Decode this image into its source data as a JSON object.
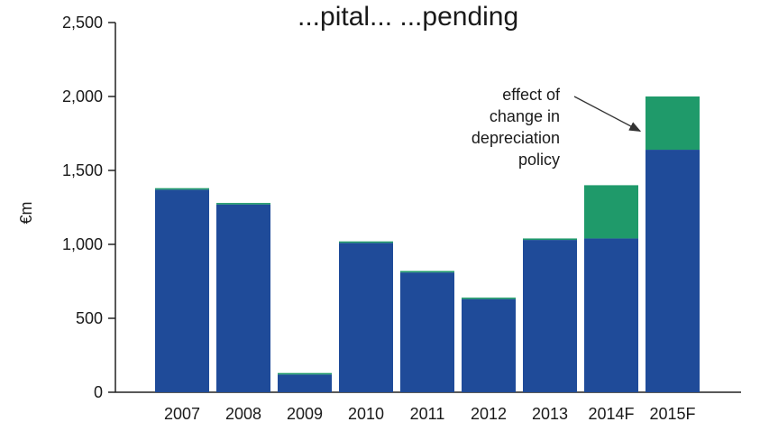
{
  "chart_data": {
    "type": "bar",
    "stacked": true,
    "title": "...pital... ...pending",
    "ylabel": "€m",
    "xlabel": "",
    "ylim": [
      0,
      2500
    ],
    "yticks": [
      0,
      500,
      1000,
      1500,
      2000,
      2500
    ],
    "ytick_labels": [
      "0",
      "500",
      "1,000",
      "1,500",
      "2,000",
      "2,500"
    ],
    "categories": [
      "2007",
      "2008",
      "2009",
      "2010",
      "2011",
      "2012",
      "2013",
      "2014F",
      "2015F"
    ],
    "series": [
      {
        "values": [
          1370,
          1270,
          120,
          1010,
          810,
          630,
          1030,
          1040,
          1640
        ],
        "color": "#1f4b99"
      },
      {
        "values": [
          10,
          10,
          10,
          10,
          10,
          10,
          10,
          360,
          360
        ],
        "color": "#1f9a6a"
      }
    ],
    "annotation": {
      "lines": [
        "effect of",
        "change in",
        "depreciation",
        "policy"
      ],
      "target_category": "2015F"
    },
    "grid": false,
    "legend": "none"
  }
}
